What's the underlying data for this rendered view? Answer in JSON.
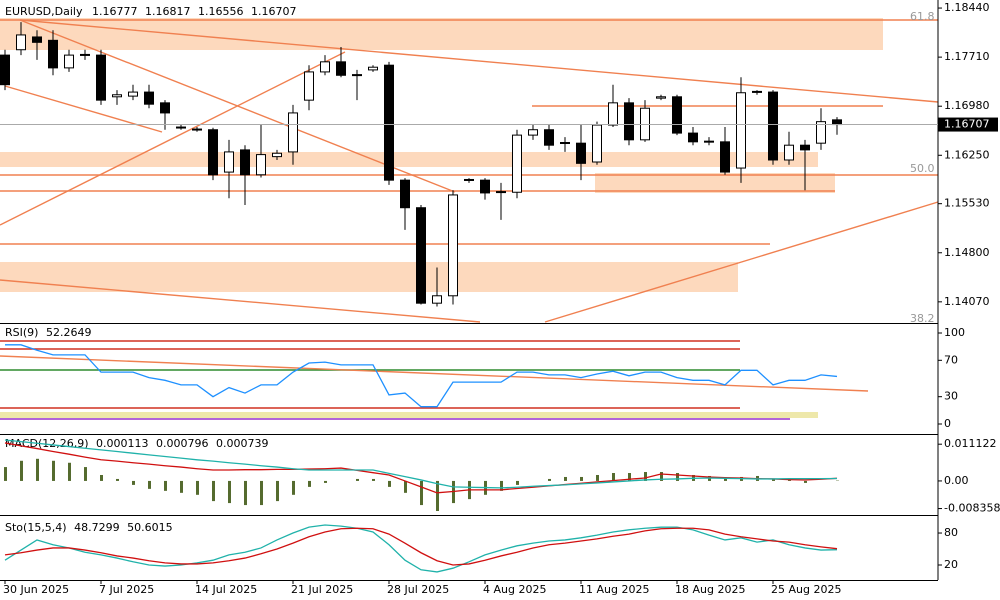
{
  "chart_data": [
    {
      "type": "candlestick",
      "title": "EURUSD,Daily",
      "categories": [
        "30 Jun 2025",
        null,
        null,
        null,
        null,
        null,
        "7 Jul 2025",
        null,
        null,
        null,
        null,
        null,
        "14 Jul 2025",
        null,
        null,
        null,
        null,
        null,
        "21 Jul 2025",
        null,
        null,
        null,
        null,
        null,
        "28 Jul 2025",
        null,
        null,
        null,
        null,
        null,
        "4 Aug 2025",
        null,
        null,
        null,
        null,
        null,
        "11 Aug 2025",
        null,
        null,
        null,
        null,
        null,
        "18 Aug 2025",
        null,
        null,
        null,
        null,
        null,
        "25 Aug 2025",
        null,
        null,
        null,
        null
      ],
      "open": [
        1.1774,
        1.1782,
        1.1801,
        1.1796,
        1.1755,
        1.1774,
        1.1774,
        1.1712,
        1.1713,
        1.1719,
        1.1703,
        1.1666,
        1.1663,
        1.1663,
        1.16,
        1.1633,
        1.1596,
        1.1623,
        1.163,
        1.1707,
        1.1749,
        1.1764,
        1.1744,
        1.1752,
        1.1759,
        1.1588,
        1.1547,
        1.1405,
        1.1416,
        1.1588,
        1.1588,
        1.157,
        1.157,
        1.1655,
        1.1663,
        1.1643,
        1.1643,
        1.1615,
        1.167,
        1.1703,
        1.1648,
        1.171,
        1.1712,
        1.1658,
        1.1645,
        1.1645,
        1.1606,
        1.1719,
        1.1719,
        1.1618,
        1.164,
        1.1643,
        1.16777
      ],
      "high": [
        1.1782,
        1.1823,
        1.1811,
        1.1811,
        1.1782,
        1.1782,
        1.1782,
        1.1722,
        1.173,
        1.173,
        1.1707,
        1.167,
        1.1667,
        1.1666,
        1.1648,
        1.164,
        1.167,
        1.1633,
        1.17,
        1.1759,
        1.1774,
        1.1786,
        1.1752,
        1.1759,
        1.1764,
        1.1591,
        1.1551,
        1.1458,
        1.1573,
        1.1591,
        1.1591,
        1.1584,
        1.1663,
        1.167,
        1.167,
        1.1652,
        1.167,
        1.1675,
        1.173,
        1.171,
        1.1707,
        1.1715,
        1.1715,
        1.1667,
        1.1652,
        1.1667,
        1.1741,
        1.1722,
        1.1722,
        1.166,
        1.1648,
        1.1695,
        1.16817
      ],
      "low": [
        1.1722,
        1.1774,
        1.1767,
        1.1744,
        1.1749,
        1.1767,
        1.17,
        1.17,
        1.1707,
        1.1695,
        1.1663,
        1.1663,
        1.166,
        1.1588,
        1.1561,
        1.1551,
        1.1592,
        1.1618,
        1.1611,
        1.1692,
        1.1744,
        1.1741,
        1.1707,
        1.1749,
        1.1581,
        1.1514,
        1.1403,
        1.14,
        1.1403,
        1.1584,
        1.1559,
        1.1529,
        1.1561,
        1.1648,
        1.1633,
        1.163,
        1.1588,
        1.1611,
        1.1667,
        1.164,
        1.1645,
        1.1707,
        1.1655,
        1.164,
        1.164,
        1.1596,
        1.1584,
        1.1715,
        1.1611,
        1.1611,
        1.1573,
        1.1633,
        1.16556
      ],
      "close": [
        1.173,
        1.1804,
        1.1793,
        1.1755,
        1.1774,
        1.1775,
        1.1707,
        1.1715,
        1.1719,
        1.1701,
        1.1688,
        1.1667,
        1.1664,
        1.1596,
        1.163,
        1.1596,
        1.1626,
        1.1628,
        1.1688,
        1.1749,
        1.1764,
        1.1744,
        1.1745,
        1.1756,
        1.1588,
        1.1547,
        1.1405,
        1.1416,
        1.1566,
        1.1589,
        1.1569,
        1.1571,
        1.1655,
        1.1663,
        1.164,
        1.1644,
        1.1613,
        1.167,
        1.1703,
        1.1648,
        1.1695,
        1.1712,
        1.1658,
        1.1645,
        1.1646,
        1.16,
        1.1718,
        1.172,
        1.1618,
        1.164,
        1.1633,
        1.1675,
        1.16707
      ],
      "ylim": [
        1.1377,
        1.1853
      ],
      "yticks": [
        {
          "value": 1.1844,
          "label": "1.18440"
        },
        {
          "value": 1.1771,
          "label": "1.17710"
        },
        {
          "value": 1.1698,
          "label": "1.16980"
        },
        {
          "value": 1.1625,
          "label": "1.16250"
        },
        {
          "value": 1.1553,
          "label": "1.15530"
        },
        {
          "value": 1.148,
          "label": "1.14800"
        },
        {
          "value": 1.1407,
          "label": "1.14070"
        }
      ],
      "annotations": [
        "61.8",
        "50.0",
        "38.2"
      ]
    },
    {
      "type": "line",
      "title": "RSI(9)",
      "color": "#1e90ff",
      "values": [
        87,
        87,
        81,
        76,
        76,
        76,
        57,
        57,
        57,
        51,
        48,
        43,
        43,
        30,
        40,
        34,
        43,
        43,
        57,
        67,
        68,
        65,
        65,
        65,
        32,
        34,
        19,
        19,
        46,
        46,
        46,
        46,
        57,
        57,
        54,
        54,
        51,
        55,
        58,
        53,
        57,
        57,
        51,
        48,
        48,
        43,
        59,
        59,
        43,
        48,
        48,
        54,
        52.2649
      ],
      "ylim": [
        -8.8,
        108.8
      ],
      "yticks": [
        100,
        70,
        30,
        0
      ]
    },
    {
      "type": "combo",
      "title": "MACD(12,26,9)",
      "series": [
        {
          "type": "bar",
          "color": "#556b2f",
          "values": [
            0.0042,
            0.0061,
            0.0067,
            0.0061,
            0.0055,
            0.0042,
            0.0018,
            0.0006,
            -0.0012,
            -0.0024,
            -0.003,
            -0.0036,
            -0.0042,
            -0.0061,
            -0.0067,
            -0.0073,
            -0.0073,
            -0.0061,
            -0.0042,
            -0.0018,
            -0.0006,
            0,
            0.0006,
            0.0006,
            -0.0018,
            -0.0036,
            -0.0073,
            -0.0091,
            -0.0067,
            -0.0055,
            -0.0042,
            -0.003,
            -0.0012,
            0,
            0.0006,
            0.0012,
            0.0012,
            0.0018,
            0.0024,
            0.0024,
            0.0027,
            0.0027,
            0.0024,
            0.0018,
            0.0015,
            0.0006,
            0.0012,
            0.0015,
            0.0006,
            0.0003,
            -0.0006,
            0,
            0.000113
          ]
        },
        {
          "type": "line",
          "color": "#d01010",
          "values": [
            0.0115,
            0.0106,
            0.0098,
            0.0089,
            0.0081,
            0.0072,
            0.0064,
            0.006,
            0.0055,
            0.0051,
            0.0046,
            0.0042,
            0.0037,
            0.0033,
            0.0033,
            0.0034,
            0.0034,
            0.0035,
            0.0035,
            0.0036,
            0.0037,
            0.0039,
            0.0032,
            0.0025,
            0.0018,
            0,
            -0.0018,
            -0.0036,
            -0.0032,
            -0.0027,
            -0.0027,
            -0.0027,
            -0.0023,
            -0.0019,
            -0.0015,
            -0.0011,
            -0.0007,
            -0.0003,
            0.0001,
            0.0005,
            0.0009,
            0.0021,
            0.0018,
            0.0015,
            0.0012,
            0.001,
            0.0009,
            0.0007,
            0.0006,
            0.0004,
            0.0003,
            0.0005,
            0.000796
          ]
        },
        {
          "type": "line",
          "color": "#20b2aa",
          "values": [
            0.0124,
            0.0119,
            0.0114,
            0.0109,
            0.0104,
            0.0099,
            0.0094,
            0.0089,
            0.0084,
            0.0079,
            0.0074,
            0.0069,
            0.0064,
            0.006,
            0.0055,
            0.0051,
            0.0046,
            0.0042,
            0.0037,
            0.0033,
            0.0033,
            0.0033,
            0.0033,
            0.0033,
            0.0023,
            0.0013,
            0.0003,
            -0.0008,
            -0.0018,
            -0.0019,
            -0.002,
            -0.0021,
            -0.0019,
            -0.0016,
            -0.0014,
            -0.0012,
            -0.0009,
            -0.0006,
            -0.0003,
            0,
            0.0003,
            0.0005,
            0.0006,
            0.0008,
            0.0009,
            0.0008,
            0.0007,
            0.0006,
            0.0006,
            0.0007,
            0.0007,
            0.0007,
            0.000739
          ]
        }
      ],
      "ylim": [
        -0.0094,
        0.0136
      ],
      "yticks": [
        0.011122,
        {
          "value": 0,
          "label": "0.00"
        },
        -0.008358
      ]
    },
    {
      "type": "combo",
      "title": "Sto(15,5,4)",
      "series": [
        {
          "type": "line",
          "color": "#20b2aa",
          "values": [
            29,
            48,
            67,
            58,
            52,
            44,
            39,
            33,
            26,
            20,
            18,
            20,
            24,
            29,
            39,
            44,
            52,
            67,
            80,
            91,
            95,
            93,
            89,
            82,
            58,
            29,
            11,
            7,
            14,
            26,
            39,
            48,
            56,
            61,
            65,
            67,
            71,
            76,
            82,
            86,
            89,
            91,
            91,
            86,
            76,
            67,
            71,
            63,
            67,
            58,
            52,
            48,
            48.7299
          ]
        },
        {
          "type": "line",
          "color": "#d01010",
          "values": [
            39,
            43,
            48,
            52,
            52,
            48,
            43,
            37,
            33,
            28,
            24,
            22,
            22,
            24,
            28,
            33,
            41,
            50,
            61,
            73,
            82,
            88,
            89,
            88,
            78,
            61,
            43,
            28,
            20,
            22,
            29,
            37,
            44,
            52,
            58,
            61,
            65,
            69,
            74,
            78,
            84,
            88,
            89,
            89,
            86,
            78,
            73,
            69,
            65,
            63,
            58,
            54,
            50.6015
          ]
        }
      ],
      "ylim": [
        -4.4,
        108.2
      ],
      "yticks": [
        80,
        20
      ]
    }
  ]
}
